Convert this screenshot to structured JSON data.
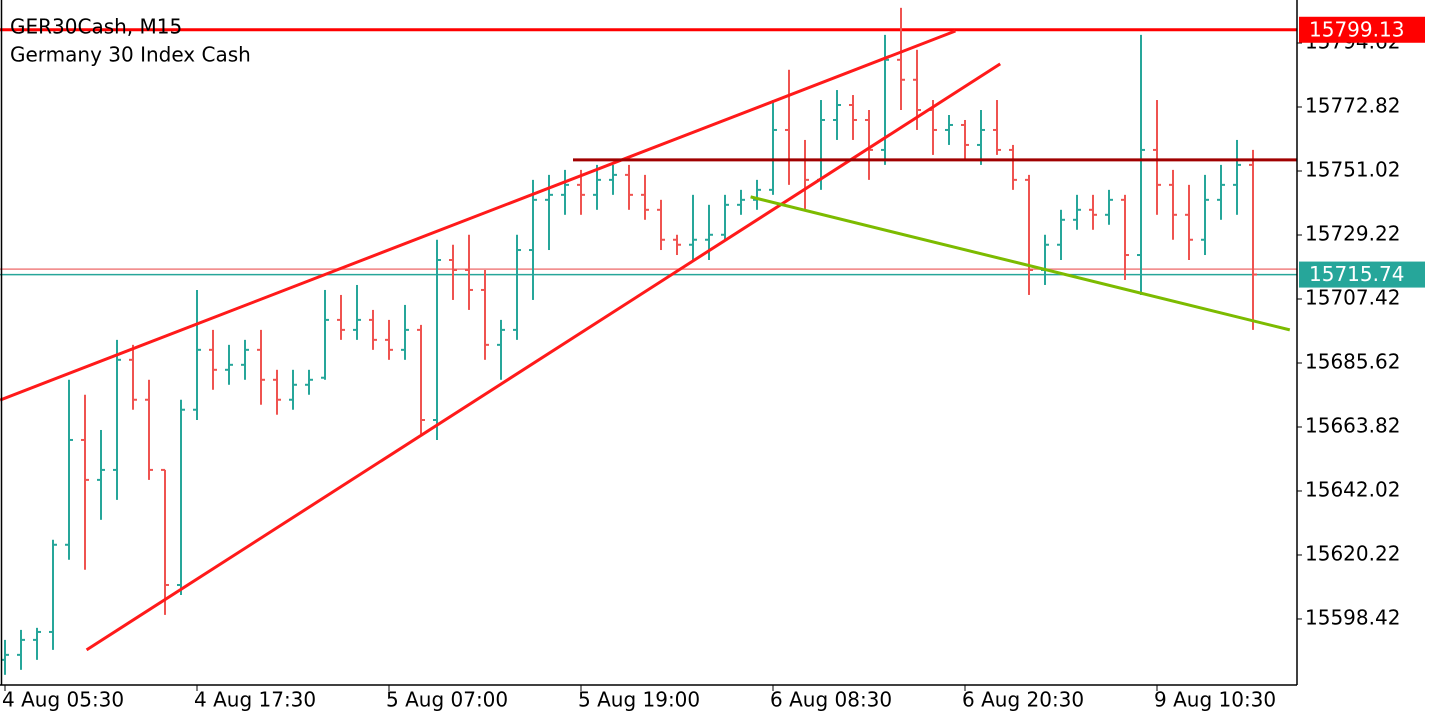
{
  "chart_data": {
    "type": "ohlc",
    "title": "GER30Cash, M15",
    "subtitle": "Germany 30 Index Cash",
    "up_color": "#26a69a",
    "down_color": "#ef5350",
    "categories": [
      "4 Aug 05:30",
      null,
      null,
      null,
      null,
      null,
      null,
      null,
      null,
      null,
      null,
      null,
      "4 Aug 17:30",
      null,
      null,
      null,
      null,
      null,
      null,
      null,
      null,
      null,
      null,
      null,
      "5 Aug 07:00",
      null,
      null,
      null,
      null,
      null,
      null,
      null,
      null,
      null,
      null,
      null,
      "5 Aug 19:00",
      null,
      null,
      null,
      null,
      null,
      null,
      null,
      null,
      null,
      null,
      null,
      "6 Aug 08:30",
      null,
      null,
      null,
      null,
      null,
      null,
      null,
      null,
      null,
      null,
      null,
      "6 Aug 20:30",
      null,
      null,
      null,
      null,
      null,
      null,
      null,
      null,
      null,
      null,
      null,
      "9 Aug 10:30",
      null,
      null,
      null,
      null,
      null,
      null,
      null,
      null
    ],
    "open": [
      15584.5,
      15586.2,
      15591.3,
      15594.0,
      15623.7,
      15659.4,
      15645.8,
      15649.2,
      15686.7,
      15673.1,
      15649.2,
      15610.0,
      15669.7,
      15690.1,
      15683.3,
      15685.0,
      15690.1,
      15679.9,
      15673.1,
      15678.2,
      15680.6,
      15700.3,
      15696.9,
      15700.3,
      15693.5,
      15690.1,
      15696.9,
      15666.2,
      15720.7,
      15717.3,
      15710.5,
      15691.8,
      15696.9,
      15724.1,
      15741.2,
      15742.9,
      15746.3,
      15742.9,
      15748.0,
      15749.7,
      15742.9,
      15737.8,
      15727.6,
      15725.9,
      15727.6,
      15729.3,
      15739.5,
      15741.2,
      15744.6,
      15765.0,
      15754.8,
      15748.0,
      15768.4,
      15773.5,
      15768.4,
      15758.2,
      15788.9,
      15782.1,
      15771.8,
      15765.0,
      15766.7,
      15759.9,
      15765.0,
      15758.2,
      15748.0,
      15717.3,
      15725.9,
      15734.4,
      15737.8,
      15736.1,
      15741.2,
      15722.4,
      15758.2,
      15746.3,
      15736.1,
      15727.6,
      15741.2,
      15746.3,
      15753.1,
      null,
      null
    ],
    "high": [
      15591.3,
      15594.7,
      15595.4,
      15625.4,
      15679.9,
      15674.8,
      15662.8,
      15693.5,
      15691.8,
      15679.9,
      15649.2,
      15673.1,
      15710.5,
      15696.9,
      15691.8,
      15693.5,
      15696.9,
      15683.3,
      15683.3,
      15683.3,
      15710.5,
      15708.8,
      15712.2,
      15703.7,
      15700.3,
      15705.4,
      15698.6,
      15727.6,
      15725.9,
      15729.3,
      15717.3,
      15700.3,
      15729.3,
      15748.0,
      15749.7,
      15751.4,
      15751.4,
      15753.1,
      15753.1,
      15753.1,
      15749.7,
      15741.2,
      15729.3,
      15742.9,
      15739.5,
      15742.9,
      15744.6,
      15748.0,
      15775.2,
      15785.5,
      15761.6,
      15775.2,
      15778.6,
      15776.9,
      15771.8,
      15797.4,
      15806.6,
      15792.3,
      15775.2,
      15770.1,
      15768.4,
      15771.8,
      15775.2,
      15759.9,
      15749.7,
      15729.3,
      15737.8,
      15742.9,
      15742.9,
      15744.6,
      15742.9,
      15797.4,
      15775.2,
      15751.4,
      15746.3,
      15749.7,
      15753.1,
      15761.6,
      15758.2,
      null,
      null
    ],
    "low": [
      15579.4,
      15581.1,
      15584.5,
      15587.9,
      15618.6,
      15615.2,
      15632.2,
      15639.0,
      15669.7,
      15645.8,
      15599.8,
      15606.6,
      15666.2,
      15676.5,
      15678.2,
      15679.9,
      15671.4,
      15668.0,
      15669.7,
      15674.8,
      15679.9,
      15693.5,
      15693.5,
      15690.1,
      15686.7,
      15686.7,
      15661.1,
      15659.4,
      15707.1,
      15703.7,
      15686.7,
      15679.9,
      15693.5,
      15707.1,
      15724.1,
      15736.1,
      15736.1,
      15737.8,
      15742.9,
      15737.8,
      15734.4,
      15724.1,
      15722.4,
      15720.7,
      15720.7,
      15727.6,
      15736.1,
      15737.8,
      15742.9,
      15746.3,
      15737.8,
      15744.6,
      15761.6,
      15761.6,
      15748.0,
      15753.1,
      15771.8,
      15765.0,
      15756.5,
      15759.9,
      15754.8,
      15753.1,
      15756.5,
      15744.6,
      15708.8,
      15712.2,
      15720.7,
      15731.0,
      15731.0,
      15732.7,
      15713.9,
      15708.8,
      15736.1,
      15727.6,
      15720.7,
      15722.4,
      15734.4,
      15736.1,
      15696.9,
      null,
      null
    ],
    "close": [
      15586.2,
      15591.3,
      15594.0,
      15623.7,
      15659.4,
      15645.8,
      15649.2,
      15686.7,
      15673.1,
      15649.2,
      15610.0,
      15669.7,
      15690.1,
      15683.3,
      15685.0,
      15690.1,
      15679.9,
      15673.1,
      15678.2,
      15679.9,
      15700.3,
      15696.9,
      15700.3,
      15693.5,
      15690.1,
      15696.9,
      15666.2,
      15720.7,
      15717.3,
      15710.5,
      15691.8,
      15696.9,
      15724.1,
      15741.2,
      15742.9,
      15746.3,
      15742.9,
      15748.0,
      15749.7,
      15742.9,
      15737.8,
      15727.6,
      15725.9,
      15727.6,
      15729.3,
      15739.5,
      15741.2,
      15744.6,
      15765.0,
      15754.8,
      15748.0,
      15768.4,
      15773.5,
      15768.4,
      15758.2,
      15788.9,
      15782.1,
      15771.8,
      15765.0,
      15766.7,
      15759.9,
      15765.0,
      15758.2,
      15748.0,
      15717.3,
      15725.9,
      15734.4,
      15737.8,
      15736.1,
      15741.2,
      15722.4,
      15758.2,
      15746.3,
      15736.1,
      15727.6,
      15741.2,
      15746.3,
      15753.1,
      15715.74,
      null,
      null
    ],
    "xlim": [
      -0.3125,
      80.75
    ],
    "ylim": [
      15575.93,
      15809.27
    ],
    "yticks": [
      15598.42,
      15620.22,
      15642.02,
      15663.82,
      15685.62,
      15707.42,
      15729.22,
      15751.02,
      15772.82,
      15794.62
    ],
    "levels": [
      {
        "value": 15717.6,
        "color": "#f08080",
        "boxed": false
      },
      {
        "value": 15715.74,
        "color": "#26a69a",
        "boxed": true
      },
      {
        "value": 15799.13,
        "color": "#ff0000",
        "boxed": true
      }
    ],
    "drawings": [
      {
        "x": [
          -0.31,
          59.4
        ],
        "y": [
          15673.0,
          15798.7
        ],
        "color": "#ff1a1a"
      },
      {
        "x": [
          5.1,
          62.2
        ],
        "y": [
          15587.9,
          15787.5
        ],
        "color": "#ff1a1a"
      },
      {
        "x": [
          35.5,
          80.75
        ],
        "y": [
          15754.8,
          15754.8
        ],
        "color": "#a00000"
      },
      {
        "x": [
          46.6,
          80.3
        ],
        "y": [
          15742.2,
          15696.9
        ],
        "color": "#7cbb00"
      }
    ]
  }
}
